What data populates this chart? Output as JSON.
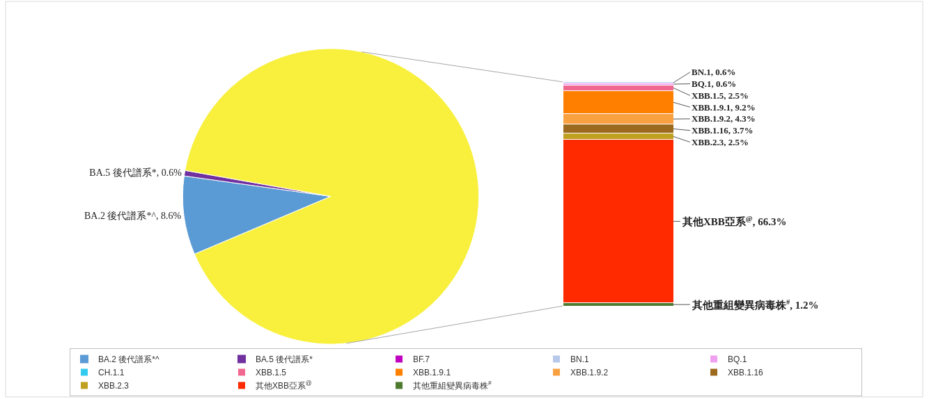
{
  "chart_data": [
    {
      "type": "pie",
      "categories": [
        "BA.2 後代譜系*^",
        "BA.5 後代譜系*",
        null
      ],
      "values": [
        8.6,
        0.6,
        90.8
      ],
      "colors": [
        "#5b9bd5",
        "#7030a0",
        "#f8f03c"
      ],
      "value_labels": [
        "BA.2 後代譜系*^, 8.6%",
        "BA.5 後代譜系*, 0.6%",
        null
      ],
      "legend": "bottom"
    },
    {
      "type": "bar",
      "stacked": true,
      "categories": [
        null
      ],
      "legend": "bottom",
      "series": [
        {
          "name": "其他重組變異病毒株$^{#}$",
          "color": "#4e7a2e",
          "values": [
            1.2
          ],
          "value_labels": [
            "其他重組變異病毒株$^{#}$, 1.2%"
          ]
        },
        {
          "name": "其他XBB亞系$^{@}$",
          "color": "#ff2a00",
          "values": [
            66.3
          ],
          "value_labels": [
            "其他XBB亞系$^{@}$, 66.3%"
          ]
        },
        {
          "name": "XBB.2.3",
          "color": "#c0a020",
          "values": [
            2.5
          ],
          "value_labels": [
            "XBB.2.3, 2.5%"
          ]
        },
        {
          "name": "XBB.1.16",
          "color": "#9c6a1c",
          "values": [
            3.7
          ],
          "value_labels": [
            "XBB.1.16, 3.7%"
          ]
        },
        {
          "name": "XBB.1.9.2",
          "color": "#f9a040",
          "values": [
            4.3
          ],
          "value_labels": [
            "XBB.1.9.2, 4.3%"
          ]
        },
        {
          "name": "XBB.1.9.1",
          "color": "#ff7f00",
          "values": [
            9.2
          ],
          "value_labels": [
            "XBB.1.9.1, 9.2%"
          ]
        },
        {
          "name": "XBB.1.5",
          "color": "#f06890",
          "values": [
            2.5
          ],
          "value_labels": [
            "XBB.1.5, 2.5%"
          ]
        },
        {
          "name": "CH.1.1",
          "color": "#33ccee",
          "values": [
            0
          ],
          "value_labels": [
            null
          ]
        },
        {
          "name": "BQ.1",
          "color": "#f0a0f0",
          "values": [
            0.6
          ],
          "value_labels": [
            "BQ.1, 0.6%"
          ]
        },
        {
          "name": "BN.1",
          "color": "#b8c8ec",
          "values": [
            0.6
          ],
          "value_labels": [
            "BN.1, 0.6%"
          ]
        },
        {
          "name": "BF.7",
          "color": "#c000c0",
          "values": [
            0
          ],
          "value_labels": [
            null
          ]
        }
      ]
    }
  ]
}
